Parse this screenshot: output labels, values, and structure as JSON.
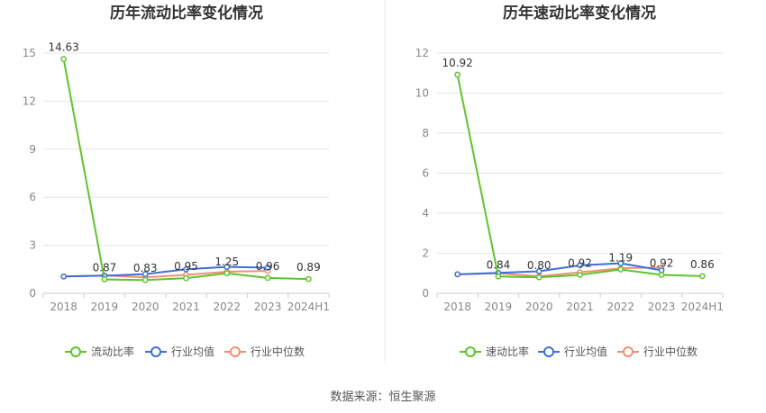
{
  "chart_data": [
    {
      "type": "line",
      "title": "历年流动比率变化情况",
      "categories": [
        "2018",
        "2019",
        "2020",
        "2021",
        "2022",
        "2023",
        "2024H1"
      ],
      "yticks": [
        "0",
        "3",
        "6",
        "9",
        "12",
        "15"
      ],
      "ylim": [
        0,
        15
      ],
      "grid": true,
      "legend_position": "bottom",
      "series": [
        {
          "name": "流动比率",
          "color": "#5ec42c",
          "values": [
            14.63,
            0.87,
            0.83,
            0.95,
            1.25,
            0.96,
            0.89
          ],
          "labels": [
            "14.63",
            "0.87",
            "0.83",
            "0.95",
            "1.25",
            "0.96",
            "0.89"
          ]
        },
        {
          "name": "行业均值",
          "color": "#3b6fd8",
          "values": [
            1.05,
            1.1,
            1.2,
            1.5,
            1.65,
            1.6,
            null
          ]
        },
        {
          "name": "行业中位数",
          "color": "#f08f6f",
          "values": [
            1.05,
            1.12,
            1.0,
            1.15,
            1.35,
            1.4,
            null
          ]
        }
      ]
    },
    {
      "type": "line",
      "title": "历年速动比率变化情况",
      "categories": [
        "2018",
        "2019",
        "2020",
        "2021",
        "2022",
        "2023",
        "2024H1"
      ],
      "yticks": [
        "0",
        "2",
        "4",
        "6",
        "8",
        "10",
        "12"
      ],
      "ylim": [
        0,
        12
      ],
      "grid": true,
      "legend_position": "bottom",
      "series": [
        {
          "name": "速动比率",
          "color": "#5ec42c",
          "values": [
            10.92,
            0.84,
            0.8,
            0.92,
            1.19,
            0.92,
            0.86
          ],
          "labels": [
            "10.92",
            "0.84",
            "0.80",
            "0.92",
            "1.19",
            "0.92",
            "0.86"
          ]
        },
        {
          "name": "行业均值",
          "color": "#3b6fd8",
          "values": [
            0.95,
            1.02,
            1.1,
            1.4,
            1.5,
            1.15,
            null
          ]
        },
        {
          "name": "行业中位数",
          "color": "#f08f6f",
          "values": [
            0.95,
            1.0,
            0.85,
            1.05,
            1.25,
            1.3,
            null
          ]
        }
      ]
    }
  ],
  "footer": {
    "source": "数据来源：恒生聚源"
  }
}
